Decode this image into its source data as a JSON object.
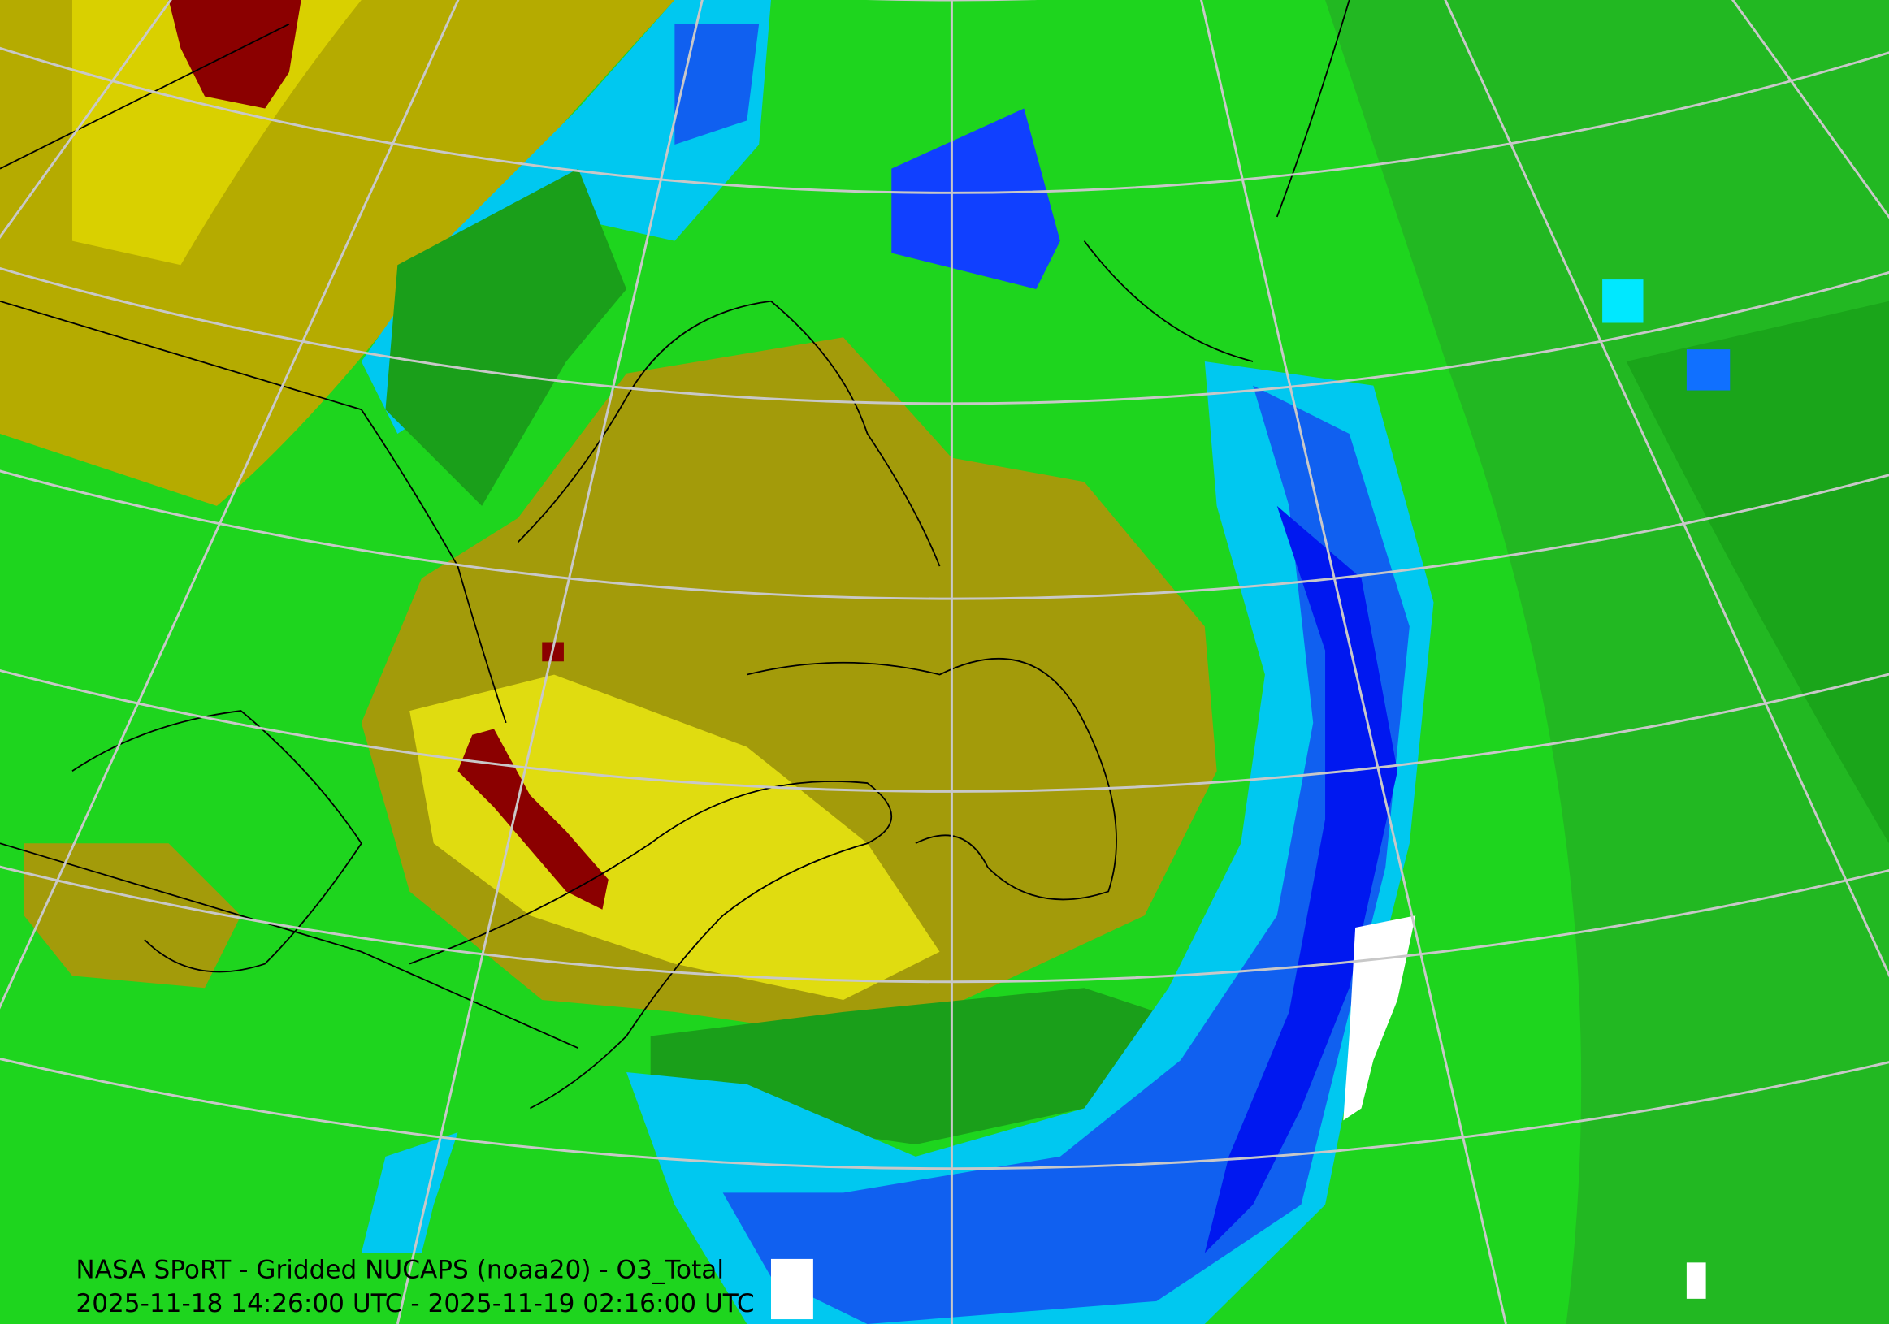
{
  "caption": {
    "line1": "NASA SPoRT - Gridded NUCAPS (noaa20) - O3_Total",
    "line2": "2025-11-18 14:26:00 UTC - 2025-11-19 02:16:00 UTC"
  }
}
